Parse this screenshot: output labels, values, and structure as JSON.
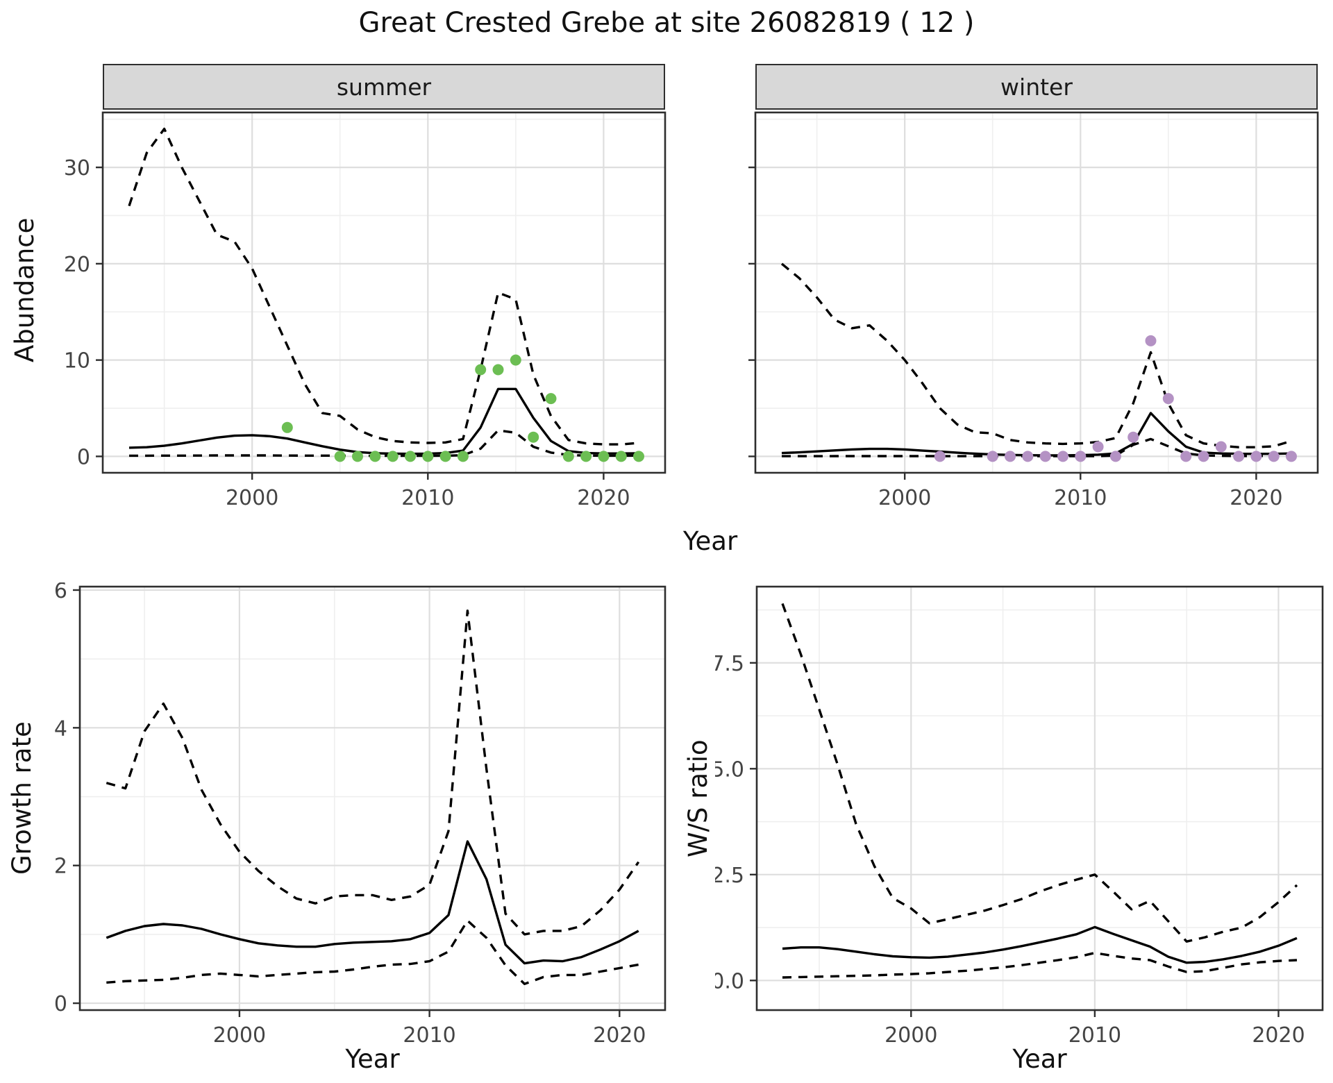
{
  "title": "Great Crested Grebe at site 26082819 ( 12 )",
  "axis_labels": {
    "year": "Year",
    "abundance": "Abundance",
    "growth": "Growth rate",
    "ws": "W/S ratio"
  },
  "facets": {
    "summer": "summer",
    "winter": "winter"
  },
  "colors": {
    "summer_point": "#6cbe53",
    "winter_point": "#b492c4",
    "line": "#000000",
    "grid_major": "#dedede",
    "grid_minor": "#efefef",
    "strip_bg": "#d8d8d8",
    "panel_border": "#2e2e2e"
  },
  "chart_data": [
    {
      "id": "summer",
      "type": "line",
      "facet": "summer",
      "ylabel": "Abundance",
      "xlabel": "Year",
      "x": [
        1993,
        1994,
        1995,
        1996,
        1997,
        1998,
        1999,
        2000,
        2001,
        2002,
        2003,
        2004,
        2005,
        2006,
        2007,
        2008,
        2009,
        2010,
        2011,
        2012,
        2013,
        2014,
        2015,
        2016,
        2017,
        2018,
        2019,
        2020,
        2021,
        2022
      ],
      "series": [
        {
          "name": "upper_ci",
          "style": "dashed",
          "values": [
            26,
            31.5,
            34,
            30,
            26.5,
            23,
            22.3,
            19.5,
            15.5,
            11.5,
            7.5,
            4.5,
            4.2,
            2.8,
            2.0,
            1.6,
            1.45,
            1.4,
            1.45,
            1.8,
            9,
            17,
            16.3,
            8.5,
            4.2,
            1.7,
            1.35,
            1.25,
            1.25,
            1.4
          ]
        },
        {
          "name": "mean",
          "style": "solid",
          "values": [
            0.9,
            0.95,
            1.1,
            1.35,
            1.65,
            1.95,
            2.15,
            2.2,
            2.1,
            1.85,
            1.45,
            1.05,
            0.7,
            0.45,
            0.33,
            0.28,
            0.27,
            0.28,
            0.35,
            0.6,
            3.0,
            7.0,
            7.0,
            4.0,
            1.6,
            0.55,
            0.35,
            0.3,
            0.3,
            0.32
          ]
        },
        {
          "name": "lower_ci",
          "style": "dashed",
          "values": [
            0.07,
            0.07,
            0.08,
            0.08,
            0.09,
            0.1,
            0.1,
            0.1,
            0.1,
            0.09,
            0.08,
            0.08,
            0.07,
            0.06,
            0.06,
            0.06,
            0.06,
            0.06,
            0.07,
            0.12,
            0.8,
            2.7,
            2.45,
            1.0,
            0.4,
            0.15,
            0.08,
            0.07,
            0.07,
            0.08
          ]
        }
      ],
      "points": {
        "color_key": "summer_point",
        "years": [
          2002,
          2005,
          2006,
          2007,
          2008,
          2009,
          2010,
          2011,
          2012,
          2013,
          2014,
          2015,
          2016,
          2017,
          2018,
          2019,
          2020,
          2021,
          2022
        ],
        "values": [
          3,
          0,
          0,
          0,
          0,
          0,
          0,
          0,
          0,
          9,
          9,
          10,
          2,
          6,
          0,
          0,
          0,
          0,
          0
        ]
      },
      "xlim": [
        1991.5,
        2023.5
      ],
      "ylim": [
        -1.7,
        35.7
      ],
      "xticks": {
        "values": [
          2000,
          2010,
          2020
        ],
        "labels": [
          "2000",
          "2010",
          "2020"
        ]
      },
      "yticks": {
        "values": [
          0,
          10,
          20,
          30
        ],
        "labels": [
          "0",
          "10",
          "20",
          "30"
        ]
      },
      "show_yticklabels": true,
      "grid": true,
      "legend": "none"
    },
    {
      "id": "winter",
      "type": "line",
      "facet": "winter",
      "ylabel": "Abundance",
      "xlabel": "Year",
      "x": [
        1993,
        1994,
        1995,
        1996,
        1997,
        1998,
        1999,
        2000,
        2001,
        2002,
        2003,
        2004,
        2005,
        2006,
        2007,
        2008,
        2009,
        2010,
        2011,
        2012,
        2013,
        2014,
        2015,
        2016,
        2017,
        2018,
        2019,
        2020,
        2021,
        2022
      ],
      "series": [
        {
          "name": "upper_ci",
          "style": "dashed",
          "values": [
            20,
            18.5,
            16.5,
            14.2,
            13.3,
            13.6,
            12,
            10,
            7.6,
            5,
            3.3,
            2.5,
            2.4,
            1.7,
            1.45,
            1.35,
            1.3,
            1.35,
            1.5,
            1.9,
            5.5,
            10.8,
            5.5,
            2.2,
            1.35,
            1.1,
            0.95,
            0.95,
            1.05,
            1.6
          ]
        },
        {
          "name": "mean",
          "style": "solid",
          "values": [
            0.35,
            0.42,
            0.52,
            0.62,
            0.72,
            0.78,
            0.78,
            0.72,
            0.6,
            0.5,
            0.38,
            0.28,
            0.2,
            0.15,
            0.12,
            0.11,
            0.11,
            0.13,
            0.18,
            0.3,
            1.3,
            4.5,
            2.6,
            1.0,
            0.4,
            0.3,
            0.27,
            0.26,
            0.27,
            0.3
          ]
        },
        {
          "name": "lower_ci",
          "style": "dashed",
          "values": [
            0.02,
            0.02,
            0.02,
            0.03,
            0.03,
            0.03,
            0.03,
            0.03,
            0.03,
            0.03,
            0.02,
            0.02,
            0.02,
            0.02,
            0.02,
            0.02,
            0.02,
            0.02,
            0.03,
            0.08,
            1.2,
            1.8,
            1.05,
            0.3,
            0.1,
            0.05,
            0.04,
            0.04,
            0.05,
            0.1
          ]
        }
      ],
      "points": {
        "color_key": "winter_point",
        "years": [
          2002,
          2005,
          2006,
          2007,
          2008,
          2009,
          2010,
          2011,
          2012,
          2013,
          2014,
          2015,
          2016,
          2017,
          2018,
          2019,
          2020,
          2021,
          2022
        ],
        "values": [
          0,
          0,
          0,
          0,
          0,
          0,
          0,
          1,
          0,
          2,
          12,
          6,
          0,
          0,
          1,
          0,
          0,
          0,
          0
        ]
      },
      "xlim": [
        1991.5,
        2023.5
      ],
      "ylim": [
        -1.7,
        35.7
      ],
      "xticks": {
        "values": [
          2000,
          2010,
          2020
        ],
        "labels": [
          "2000",
          "2010",
          "2020"
        ]
      },
      "yticks": {
        "values": [
          0,
          10,
          20,
          30
        ],
        "labels": [
          "0",
          "10",
          "20",
          "30"
        ]
      },
      "show_yticklabels": false,
      "grid": true,
      "legend": "none"
    },
    {
      "id": "growth",
      "type": "line",
      "title": "",
      "ylabel": "Growth rate",
      "xlabel": "Year",
      "x": [
        1993,
        1994,
        1995,
        1996,
        1997,
        1998,
        1999,
        2000,
        2001,
        2002,
        2003,
        2004,
        2005,
        2006,
        2007,
        2008,
        2009,
        2010,
        2011,
        2012,
        2013,
        2014,
        2015,
        2016,
        2017,
        2018,
        2019,
        2020,
        2021
      ],
      "series": [
        {
          "name": "upper_ci",
          "style": "dashed",
          "values": [
            3.2,
            3.12,
            3.95,
            4.35,
            3.85,
            3.1,
            2.6,
            2.2,
            1.92,
            1.7,
            1.52,
            1.45,
            1.55,
            1.57,
            1.57,
            1.5,
            1.55,
            1.72,
            2.5,
            5.7,
            3.4,
            1.3,
            1.0,
            1.05,
            1.05,
            1.12,
            1.35,
            1.65,
            2.05
          ]
        },
        {
          "name": "mean",
          "style": "solid",
          "values": [
            0.95,
            1.05,
            1.12,
            1.15,
            1.13,
            1.08,
            1.0,
            0.93,
            0.87,
            0.84,
            0.82,
            0.82,
            0.86,
            0.88,
            0.89,
            0.9,
            0.93,
            1.02,
            1.28,
            2.35,
            1.8,
            0.85,
            0.58,
            0.62,
            0.61,
            0.67,
            0.78,
            0.9,
            1.05
          ]
        },
        {
          "name": "lower_ci",
          "style": "dashed",
          "values": [
            0.3,
            0.32,
            0.33,
            0.34,
            0.37,
            0.41,
            0.43,
            0.41,
            0.39,
            0.41,
            0.43,
            0.45,
            0.46,
            0.49,
            0.53,
            0.56,
            0.57,
            0.61,
            0.75,
            1.2,
            0.95,
            0.55,
            0.28,
            0.38,
            0.41,
            0.41,
            0.46,
            0.51,
            0.56
          ]
        }
      ],
      "xlim": [
        1991.6,
        2022.4
      ],
      "ylim": [
        -0.1,
        6.05
      ],
      "xticks": {
        "values": [
          2000,
          2010,
          2020
        ],
        "labels": [
          "2000",
          "2010",
          "2020"
        ]
      },
      "yticks": {
        "values": [
          0,
          2,
          4,
          6
        ],
        "labels": [
          "0",
          "2",
          "4",
          "6"
        ]
      },
      "show_yticklabels": true,
      "grid": true,
      "legend": "none"
    },
    {
      "id": "ws",
      "type": "line",
      "title": "",
      "ylabel": "W/S ratio",
      "xlabel": "Year",
      "x": [
        1993,
        1994,
        1995,
        1996,
        1997,
        1998,
        1999,
        2000,
        2001,
        2002,
        2003,
        2004,
        2005,
        2006,
        2007,
        2008,
        2009,
        2010,
        2011,
        2012,
        2013,
        2014,
        2015,
        2016,
        2017,
        2018,
        2019,
        2020,
        2021
      ],
      "series": [
        {
          "name": "upper_ci",
          "style": "dashed",
          "values": [
            8.9,
            7.7,
            6.4,
            5.1,
            3.7,
            2.7,
            1.95,
            1.7,
            1.35,
            1.45,
            1.55,
            1.65,
            1.78,
            1.92,
            2.1,
            2.25,
            2.38,
            2.5,
            2.1,
            1.68,
            1.88,
            1.4,
            0.92,
            1.02,
            1.15,
            1.25,
            1.5,
            1.85,
            2.25
          ]
        },
        {
          "name": "mean",
          "style": "solid",
          "values": [
            0.75,
            0.78,
            0.78,
            0.74,
            0.68,
            0.62,
            0.57,
            0.55,
            0.54,
            0.56,
            0.61,
            0.66,
            0.73,
            0.81,
            0.9,
            0.99,
            1.09,
            1.26,
            1.1,
            0.95,
            0.8,
            0.56,
            0.42,
            0.44,
            0.5,
            0.58,
            0.68,
            0.82,
            1.0
          ]
        },
        {
          "name": "lower_ci",
          "style": "dashed",
          "values": [
            0.07,
            0.08,
            0.09,
            0.1,
            0.11,
            0.12,
            0.14,
            0.15,
            0.17,
            0.2,
            0.23,
            0.27,
            0.31,
            0.36,
            0.42,
            0.48,
            0.55,
            0.65,
            0.58,
            0.52,
            0.48,
            0.33,
            0.2,
            0.22,
            0.3,
            0.38,
            0.43,
            0.46,
            0.48
          ]
        }
      ],
      "xlim": [
        1991.6,
        2022.4
      ],
      "ylim": [
        -0.7,
        9.3
      ],
      "xticks": {
        "values": [
          2000,
          2010,
          2020
        ],
        "labels": [
          "2000",
          "2010",
          "2020"
        ]
      },
      "yticks": {
        "values": [
          0,
          2.5,
          5,
          7.5
        ],
        "labels": [
          "0.0",
          "2.5",
          "5.0",
          "7.5"
        ]
      },
      "show_yticklabels": true,
      "grid": true,
      "legend": "none"
    }
  ]
}
